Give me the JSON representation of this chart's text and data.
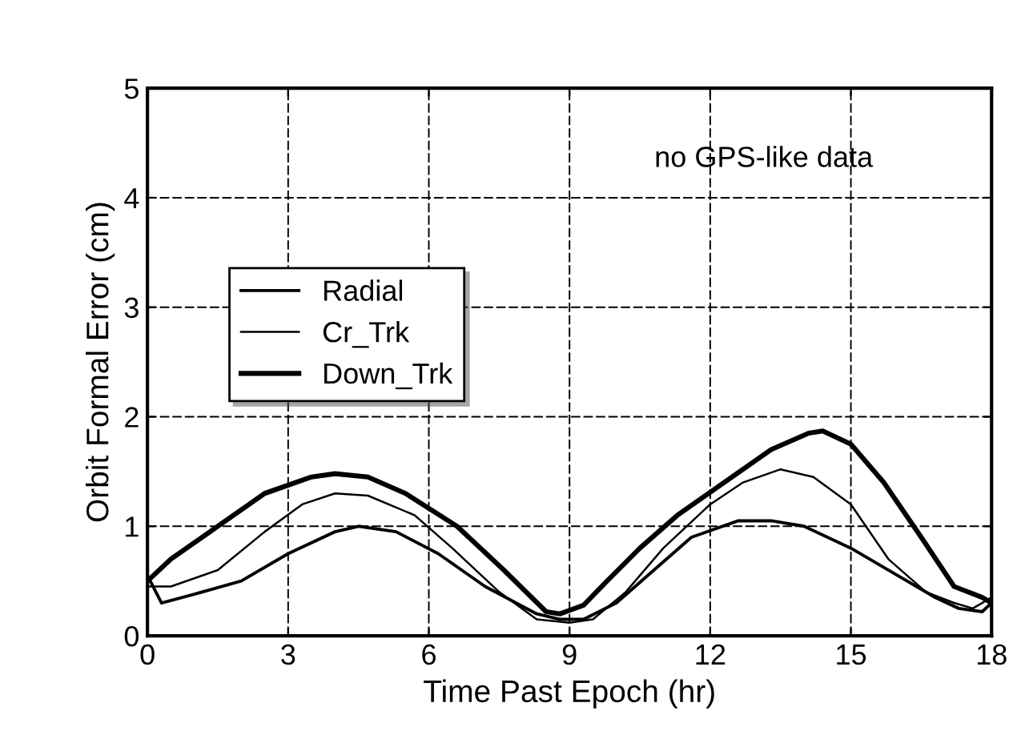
{
  "chart_data": {
    "type": "line",
    "xlabel": "Time Past Epoch (hr)",
    "ylabel": "Orbit Formal Error (cm)",
    "annotations": [
      "no GPS-like data"
    ],
    "xlim": [
      0,
      18
    ],
    "ylim": [
      0,
      5
    ],
    "xticks": [
      0,
      3,
      6,
      9,
      12,
      15,
      18
    ],
    "yticks": [
      0,
      1,
      2,
      3,
      4,
      5
    ],
    "grid": true,
    "legend": "center left",
    "marker": "none",
    "line_style": "solid",
    "series": [
      {
        "name": "Radial",
        "color": "#000000",
        "x": [
          0,
          0.3,
          1,
          2,
          3,
          4,
          4.5,
          5.3,
          6.2,
          7.2,
          8.3,
          8.8,
          9.3,
          10,
          10.8,
          11.6,
          12.6,
          13.3,
          14,
          15,
          16,
          16.8,
          17.3,
          17.8,
          18
        ],
        "values": [
          0.55,
          0.3,
          0.38,
          0.5,
          0.75,
          0.95,
          1.0,
          0.95,
          0.75,
          0.45,
          0.2,
          0.15,
          0.15,
          0.3,
          0.6,
          0.9,
          1.05,
          1.05,
          1.0,
          0.8,
          0.55,
          0.35,
          0.25,
          0.22,
          0.3
        ]
      },
      {
        "name": "Cr_Trk",
        "color": "#000000",
        "x": [
          0,
          0.5,
          1.5,
          2.5,
          3.3,
          4,
          4.7,
          5.7,
          6.5,
          7.5,
          8.3,
          9,
          9.5,
          10.2,
          11,
          12,
          12.7,
          13.5,
          14.2,
          15,
          15.8,
          16.6,
          17.2,
          17.6,
          18
        ],
        "values": [
          0.45,
          0.45,
          0.6,
          0.95,
          1.2,
          1.3,
          1.28,
          1.1,
          0.8,
          0.4,
          0.15,
          0.12,
          0.15,
          0.4,
          0.8,
          1.2,
          1.4,
          1.52,
          1.45,
          1.2,
          0.7,
          0.4,
          0.3,
          0.25,
          0.35
        ]
      },
      {
        "name": "Down_Trk",
        "color": "#000000",
        "x": [
          0,
          0.5,
          1.5,
          2.5,
          3.5,
          4,
          4.7,
          5.5,
          6.6,
          7.6,
          8.5,
          8.8,
          9.3,
          9.8,
          10.5,
          11.3,
          12.3,
          13.3,
          14.1,
          14.4,
          15,
          15.7,
          16.5,
          17.2,
          17.8,
          18
        ],
        "values": [
          0.5,
          0.7,
          1.0,
          1.3,
          1.45,
          1.48,
          1.45,
          1.3,
          1.0,
          0.6,
          0.22,
          0.2,
          0.28,
          0.5,
          0.8,
          1.1,
          1.4,
          1.7,
          1.85,
          1.87,
          1.75,
          1.4,
          0.9,
          0.45,
          0.35,
          0.3
        ]
      }
    ]
  }
}
